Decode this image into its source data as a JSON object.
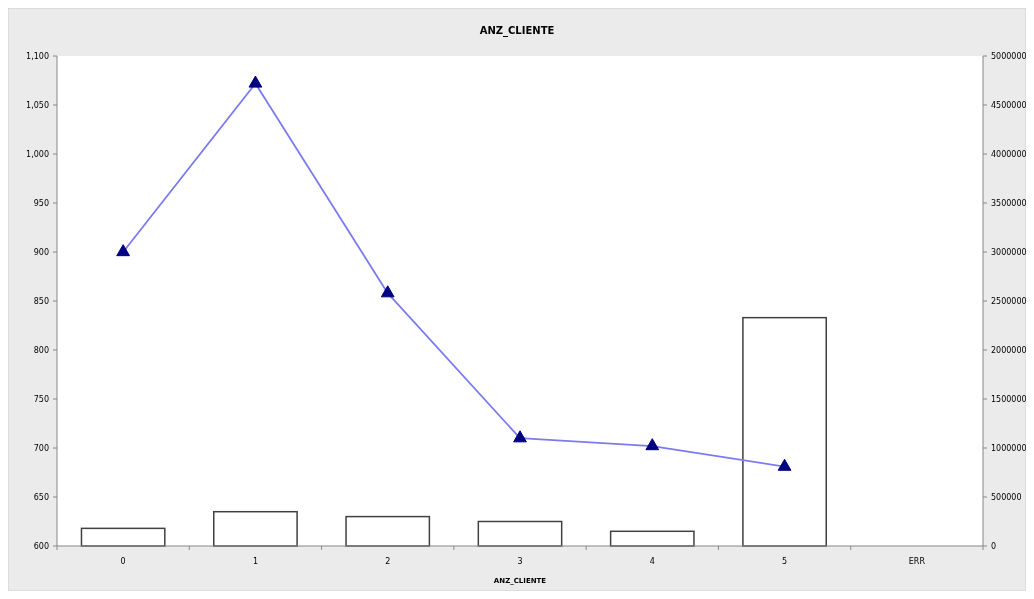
{
  "chart_data": {
    "type": "bar",
    "title": "ANZ_CLIENTE",
    "xlabel": "ANZ_CLIENTE",
    "categories": [
      "0",
      "1",
      "2",
      "3",
      "4",
      "5",
      "ERR"
    ],
    "series": [
      {
        "axis": "y2",
        "color": "#ffffff",
        "values": [
          180000,
          350000,
          300000,
          250000,
          150000,
          2330000,
          null
        ]
      },
      {
        "type": "line",
        "color": "#7b7bef",
        "marker": "triangle",
        "values": [
          900,
          1072,
          858,
          710,
          702,
          681,
          null
        ]
      }
    ],
    "ylim": [
      600,
      1100
    ],
    "yticks": [
      {
        "value": 600,
        "label": "600"
      },
      {
        "value": 650,
        "label": "650"
      },
      {
        "value": 700,
        "label": "700"
      },
      {
        "value": 750,
        "label": "750"
      },
      {
        "value": 800,
        "label": "800"
      },
      {
        "value": 850,
        "label": "850"
      },
      {
        "value": 900,
        "label": "900"
      },
      {
        "value": 950,
        "label": "950"
      },
      {
        "value": 1000,
        "label": "1,000"
      },
      {
        "value": 1050,
        "label": "1,050"
      },
      {
        "value": 1100,
        "label": "1,100"
      }
    ],
    "y2lim": [
      0,
      5000000
    ],
    "y2ticks": [
      0,
      500000,
      1000000,
      1500000,
      2000000,
      2500000,
      3000000,
      3500000,
      4000000,
      4500000,
      5000000
    ],
    "grid": false
  }
}
